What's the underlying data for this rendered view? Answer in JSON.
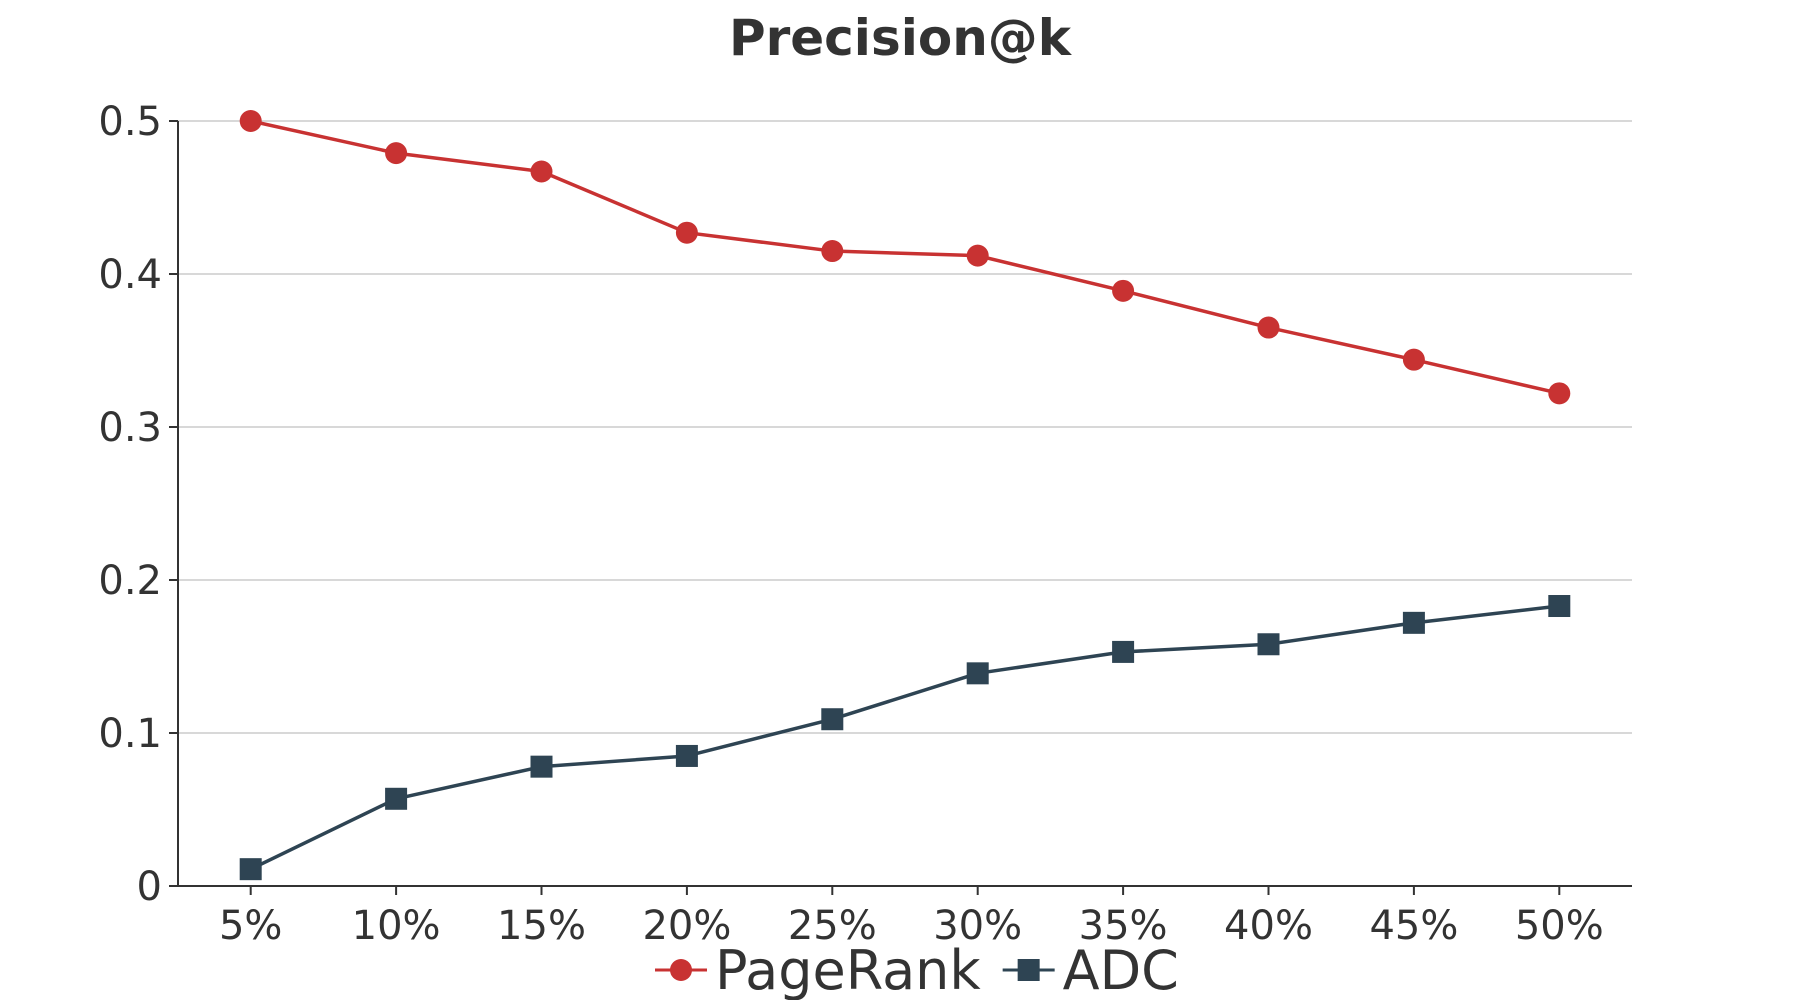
{
  "chart_data": {
    "type": "line",
    "title": "Precision@k",
    "xlabel": "",
    "ylabel": "",
    "categories": [
      "5%",
      "10%",
      "15%",
      "20%",
      "25%",
      "30%",
      "35%",
      "40%",
      "45%",
      "50%"
    ],
    "y_ticks": [
      "0",
      "0.1",
      "0.2",
      "0.3",
      "0.4",
      "0.5"
    ],
    "ylim": [
      0,
      0.5
    ],
    "grid": "horizontal",
    "legend_position": "bottom-center",
    "series": [
      {
        "name": "PageRank",
        "marker": "circle",
        "color": "#c83232",
        "values": [
          0.5,
          0.479,
          0.467,
          0.427,
          0.415,
          0.412,
          0.389,
          0.365,
          0.344,
          0.322
        ]
      },
      {
        "name": "ADC",
        "marker": "square",
        "color": "#2e4453",
        "values": [
          0.011,
          0.057,
          0.078,
          0.085,
          0.109,
          0.139,
          0.153,
          0.158,
          0.172,
          0.183
        ]
      }
    ]
  }
}
